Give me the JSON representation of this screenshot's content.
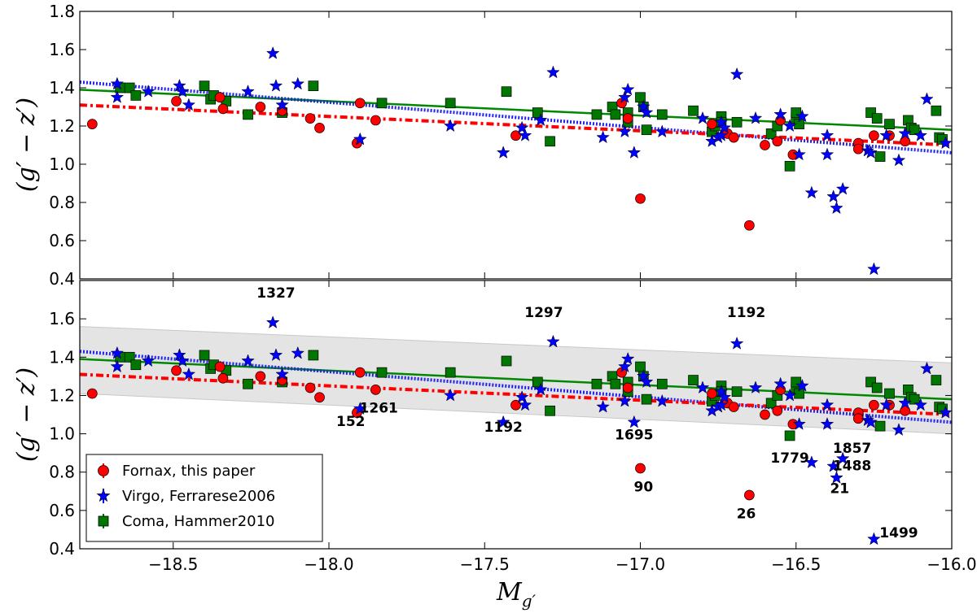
{
  "chart_data": [
    {
      "type": "scatter",
      "panel": "top",
      "xlim": [
        -18.8,
        -16.0
      ],
      "ylim": [
        0.4,
        1.8
      ],
      "xticks": [
        "−18.5",
        "−18.0",
        "−17.5",
        "−17.0",
        "−16.5",
        "−16.0"
      ],
      "xtick_values": [
        -18.5,
        -18.0,
        -17.5,
        -17.0,
        -16.5,
        -16.0
      ],
      "yticks": [
        "0.4",
        "0.6",
        "0.8",
        "1.0",
        "1.2",
        "1.4",
        "1.6",
        "1.8"
      ],
      "ytick_values": [
        0.4,
        0.6,
        0.8,
        1.0,
        1.2,
        1.4,
        1.6,
        1.8
      ],
      "ylabel": "(g′ − z′)"
    },
    {
      "type": "scatter",
      "panel": "bottom",
      "xlim": [
        -18.8,
        -16.0
      ],
      "ylim": [
        0.4,
        1.8
      ],
      "xticks": [
        "−18.5",
        "−18.0",
        "−17.5",
        "−17.0",
        "−16.5",
        "−16.0"
      ],
      "xtick_values": [
        -18.5,
        -18.0,
        -17.5,
        -17.0,
        -16.5,
        -16.0
      ],
      "yticks": [
        "0.4",
        "0.6",
        "0.8",
        "1.0",
        "1.2",
        "1.4",
        "1.6"
      ],
      "ytick_values": [
        0.4,
        0.6,
        0.8,
        1.0,
        1.2,
        1.4,
        1.6
      ],
      "ylabel": "(g′ − z′)",
      "xlabel": "M",
      "xlabel_sub": "g′",
      "band": {
        "left": [
          1.56,
          1.21
        ],
        "right": [
          1.37,
          1.0
        ]
      },
      "annotations": [
        {
          "text": "1327",
          "x": -18.17,
          "y": 1.71
        },
        {
          "text": "1297",
          "x": -17.31,
          "y": 1.61
        },
        {
          "text": "1192",
          "x": -16.66,
          "y": 1.61
        },
        {
          "text": "152",
          "x": -17.93,
          "y": 1.04
        },
        {
          "text": "1261",
          "x": -17.84,
          "y": 1.11
        },
        {
          "text": "1192",
          "x": -17.44,
          "y": 1.01
        },
        {
          "text": "1695",
          "x": -17.02,
          "y": 0.97
        },
        {
          "text": "90",
          "x": -16.99,
          "y": 0.7
        },
        {
          "text": "26",
          "x": -16.66,
          "y": 0.56
        },
        {
          "text": "1779",
          "x": -16.52,
          "y": 0.85
        },
        {
          "text": "1857",
          "x": -16.32,
          "y": 0.9
        },
        {
          "text": "1488",
          "x": -16.32,
          "y": 0.81
        },
        {
          "text": "21",
          "x": -16.36,
          "y": 0.69
        },
        {
          "text": "1499",
          "x": -16.17,
          "y": 0.46
        }
      ]
    }
  ],
  "series": [
    {
      "name": "Fornax, this paper",
      "marker": "circle",
      "color": "#ff0000",
      "points": [
        [
          -18.76,
          1.21
        ],
        [
          -18.49,
          1.33
        ],
        [
          -18.35,
          1.35
        ],
        [
          -18.34,
          1.29
        ],
        [
          -18.22,
          1.3
        ],
        [
          -18.15,
          1.28
        ],
        [
          -18.06,
          1.24
        ],
        [
          -18.03,
          1.19
        ],
        [
          -17.91,
          1.11
        ],
        [
          -17.9,
          1.32
        ],
        [
          -17.85,
          1.23
        ],
        [
          -17.4,
          1.15
        ],
        [
          -17.06,
          1.32
        ],
        [
          -17.04,
          1.24
        ],
        [
          -17.0,
          0.82
        ],
        [
          -16.77,
          1.21
        ],
        [
          -16.72,
          1.16
        ],
        [
          -16.7,
          1.14
        ],
        [
          -16.65,
          0.68
        ],
        [
          -16.6,
          1.1
        ],
        [
          -16.56,
          1.12
        ],
        [
          -16.55,
          1.23
        ],
        [
          -16.51,
          1.05
        ],
        [
          -16.3,
          1.11
        ],
        [
          -16.3,
          1.08
        ],
        [
          -16.25,
          1.15
        ],
        [
          -16.2,
          1.15
        ],
        [
          -16.15,
          1.12
        ]
      ]
    },
    {
      "name": "Virgo, Ferrarese2006",
      "marker": "star",
      "color": "#0000ff",
      "points": [
        [
          -18.68,
          1.42
        ],
        [
          -18.68,
          1.35
        ],
        [
          -18.58,
          1.38
        ],
        [
          -18.48,
          1.41
        ],
        [
          -18.47,
          1.38
        ],
        [
          -18.45,
          1.31
        ],
        [
          -18.26,
          1.38
        ],
        [
          -18.18,
          1.58
        ],
        [
          -18.17,
          1.41
        ],
        [
          -18.15,
          1.31
        ],
        [
          -18.1,
          1.42
        ],
        [
          -17.9,
          1.13
        ],
        [
          -17.61,
          1.2
        ],
        [
          -17.44,
          1.06
        ],
        [
          -17.38,
          1.19
        ],
        [
          -17.37,
          1.15
        ],
        [
          -17.32,
          1.23
        ],
        [
          -17.28,
          1.48
        ],
        [
          -17.12,
          1.14
        ],
        [
          -17.05,
          1.17
        ],
        [
          -17.05,
          1.35
        ],
        [
          -17.04,
          1.39
        ],
        [
          -17.02,
          1.06
        ],
        [
          -16.99,
          1.3
        ],
        [
          -16.98,
          1.27
        ],
        [
          -16.93,
          1.17
        ],
        [
          -16.8,
          1.24
        ],
        [
          -16.77,
          1.12
        ],
        [
          -16.75,
          1.14
        ],
        [
          -16.74,
          1.15
        ],
        [
          -16.74,
          1.22
        ],
        [
          -16.73,
          1.19
        ],
        [
          -16.69,
          1.47
        ],
        [
          -16.63,
          1.24
        ],
        [
          -16.55,
          1.26
        ],
        [
          -16.52,
          1.2
        ],
        [
          -16.49,
          1.05
        ],
        [
          -16.48,
          1.25
        ],
        [
          -16.45,
          0.85
        ],
        [
          -16.4,
          1.15
        ],
        [
          -16.4,
          1.05
        ],
        [
          -16.38,
          0.83
        ],
        [
          -16.37,
          0.77
        ],
        [
          -16.35,
          0.87
        ],
        [
          -16.27,
          1.07
        ],
        [
          -16.26,
          1.06
        ],
        [
          -16.25,
          0.45
        ],
        [
          -16.21,
          1.15
        ],
        [
          -16.17,
          1.02
        ],
        [
          -16.15,
          1.16
        ],
        [
          -16.1,
          1.15
        ],
        [
          -16.08,
          1.34
        ],
        [
          -16.02,
          1.11
        ]
      ]
    },
    {
      "name": "Coma, Hammer2010",
      "marker": "square",
      "color": "#007700",
      "points": [
        [
          -18.67,
          1.4
        ],
        [
          -18.64,
          1.4
        ],
        [
          -18.62,
          1.36
        ],
        [
          -18.4,
          1.41
        ],
        [
          -18.38,
          1.34
        ],
        [
          -18.37,
          1.36
        ],
        [
          -18.33,
          1.33
        ],
        [
          -18.26,
          1.26
        ],
        [
          -18.15,
          1.27
        ],
        [
          -18.05,
          1.41
        ],
        [
          -17.83,
          1.32
        ],
        [
          -17.61,
          1.32
        ],
        [
          -17.43,
          1.38
        ],
        [
          -17.33,
          1.27
        ],
        [
          -17.29,
          1.12
        ],
        [
          -17.14,
          1.26
        ],
        [
          -17.09,
          1.3
        ],
        [
          -17.08,
          1.26
        ],
        [
          -17.04,
          1.27
        ],
        [
          -17.04,
          1.22
        ],
        [
          -17.0,
          1.35
        ],
        [
          -16.99,
          1.3
        ],
        [
          -16.98,
          1.18
        ],
        [
          -16.93,
          1.26
        ],
        [
          -16.83,
          1.28
        ],
        [
          -16.77,
          1.17
        ],
        [
          -16.76,
          1.2
        ],
        [
          -16.74,
          1.25
        ],
        [
          -16.74,
          1.22
        ],
        [
          -16.69,
          1.22
        ],
        [
          -16.58,
          1.16
        ],
        [
          -16.56,
          1.2
        ],
        [
          -16.52,
          0.99
        ],
        [
          -16.5,
          1.24
        ],
        [
          -16.5,
          1.27
        ],
        [
          -16.49,
          1.21
        ],
        [
          -16.26,
          1.27
        ],
        [
          -16.24,
          1.24
        ],
        [
          -16.23,
          1.04
        ],
        [
          -16.2,
          1.21
        ],
        [
          -16.14,
          1.23
        ],
        [
          -16.13,
          1.19
        ],
        [
          -16.12,
          1.18
        ],
        [
          -16.05,
          1.28
        ],
        [
          -16.04,
          1.14
        ],
        [
          -16.03,
          1.13
        ]
      ]
    }
  ],
  "fits": [
    {
      "name": "Coma fit",
      "style": "solid",
      "color": "#008800",
      "from": [
        -18.8,
        1.39
      ],
      "to": [
        -16.0,
        1.18
      ]
    },
    {
      "name": "Virgo fit",
      "style": "dotted",
      "color": "#2222ee",
      "from": [
        -18.8,
        1.43
      ],
      "to": [
        -16.0,
        1.06
      ]
    },
    {
      "name": "Fornax fit",
      "style": "dashdot",
      "color": "#ff0000",
      "from": [
        -18.8,
        1.31
      ],
      "to": [
        -16.0,
        1.1
      ]
    }
  ],
  "legend": {
    "location": "lower-left",
    "entries": [
      "Fornax, this paper",
      "Virgo, Ferrarese2006",
      "Coma, Hammer2010"
    ]
  }
}
